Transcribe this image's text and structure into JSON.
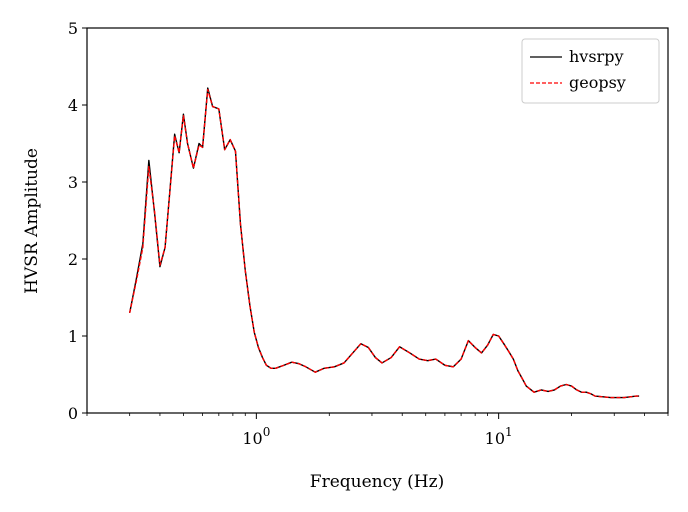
{
  "chart_data": {
    "type": "line",
    "xlabel": "Frequency (Hz)",
    "ylabel": "HVSR Amplitude",
    "xscale": "log",
    "xlim": [
      0.2,
      50
    ],
    "ylim": [
      0,
      5
    ],
    "yticks": [
      "0",
      "1",
      "2",
      "3",
      "4",
      "5"
    ],
    "xticks": [
      {
        "value": 1,
        "base": "10",
        "exp": "0"
      },
      {
        "value": 10,
        "base": "10",
        "exp": "1"
      }
    ],
    "grid": false,
    "legend_position": "top-right",
    "series": [
      {
        "name": "hvsrpy",
        "color": "#000000",
        "dash": "solid",
        "x": [
          0.3,
          0.32,
          0.34,
          0.36,
          0.38,
          0.4,
          0.42,
          0.44,
          0.46,
          0.48,
          0.5,
          0.52,
          0.55,
          0.58,
          0.6,
          0.63,
          0.66,
          0.7,
          0.74,
          0.78,
          0.82,
          0.86,
          0.9,
          0.94,
          0.98,
          1.02,
          1.06,
          1.1,
          1.15,
          1.2,
          1.3,
          1.4,
          1.5,
          1.6,
          1.75,
          1.9,
          2.1,
          2.3,
          2.5,
          2.7,
          2.9,
          3.1,
          3.3,
          3.6,
          3.9,
          4.3,
          4.7,
          5.1,
          5.5,
          6.0,
          6.5,
          7.0,
          7.5,
          8.0,
          8.5,
          9.0,
          9.5,
          10.0,
          10.5,
          11.0,
          11.5,
          12.0,
          12.5,
          13.0,
          14.0,
          15.0,
          16.0,
          17.0,
          18.0,
          19.0,
          20.0,
          21.0,
          22.0,
          23.0,
          24.0,
          25.0,
          27.0,
          29.0,
          31.0,
          33.0,
          35.0,
          37.0,
          38.0
        ],
        "values": [
          1.3,
          1.75,
          2.2,
          3.28,
          2.6,
          1.9,
          2.15,
          2.9,
          3.62,
          3.38,
          3.88,
          3.5,
          3.18,
          3.5,
          3.45,
          4.22,
          3.98,
          3.95,
          3.42,
          3.55,
          3.4,
          2.45,
          1.85,
          1.4,
          1.05,
          0.85,
          0.72,
          0.62,
          0.58,
          0.58,
          0.62,
          0.66,
          0.64,
          0.6,
          0.53,
          0.58,
          0.6,
          0.65,
          0.78,
          0.9,
          0.85,
          0.72,
          0.65,
          0.72,
          0.86,
          0.78,
          0.7,
          0.68,
          0.7,
          0.62,
          0.6,
          0.7,
          0.94,
          0.85,
          0.78,
          0.88,
          1.02,
          1.0,
          0.9,
          0.8,
          0.7,
          0.55,
          0.45,
          0.35,
          0.27,
          0.3,
          0.28,
          0.3,
          0.35,
          0.37,
          0.35,
          0.3,
          0.27,
          0.27,
          0.25,
          0.22,
          0.21,
          0.2,
          0.2,
          0.2,
          0.21,
          0.22,
          0.22
        ]
      },
      {
        "name": "geopsy",
        "color": "#ff0000",
        "dash": "dashed",
        "x": [
          0.3,
          0.32,
          0.34,
          0.36,
          0.38,
          0.4,
          0.42,
          0.44,
          0.46,
          0.48,
          0.5,
          0.52,
          0.55,
          0.58,
          0.6,
          0.63,
          0.66,
          0.7,
          0.74,
          0.78,
          0.82,
          0.86,
          0.9,
          0.94,
          0.98,
          1.02,
          1.06,
          1.1,
          1.15,
          1.2,
          1.3,
          1.4,
          1.5,
          1.6,
          1.75,
          1.9,
          2.1,
          2.3,
          2.5,
          2.7,
          2.9,
          3.1,
          3.3,
          3.6,
          3.9,
          4.3,
          4.7,
          5.1,
          5.5,
          6.0,
          6.5,
          7.0,
          7.5,
          8.0,
          8.5,
          9.0,
          9.5,
          10.0,
          10.5,
          11.0,
          11.5,
          12.0,
          12.5,
          13.0,
          14.0,
          15.0,
          16.0,
          17.0,
          18.0,
          19.0,
          20.0,
          21.0,
          22.0,
          23.0,
          24.0,
          25.0,
          27.0,
          29.0,
          31.0,
          33.0,
          35.0,
          37.0,
          38.0
        ],
        "values": [
          1.3,
          1.72,
          2.15,
          3.2,
          2.62,
          1.92,
          2.15,
          2.88,
          3.6,
          3.38,
          3.86,
          3.5,
          3.18,
          3.48,
          3.45,
          4.2,
          3.98,
          3.95,
          3.42,
          3.55,
          3.4,
          2.45,
          1.85,
          1.4,
          1.05,
          0.85,
          0.72,
          0.62,
          0.58,
          0.58,
          0.62,
          0.66,
          0.64,
          0.6,
          0.53,
          0.58,
          0.6,
          0.65,
          0.78,
          0.9,
          0.85,
          0.72,
          0.65,
          0.72,
          0.86,
          0.78,
          0.7,
          0.68,
          0.7,
          0.62,
          0.6,
          0.7,
          0.94,
          0.85,
          0.78,
          0.88,
          1.02,
          1.0,
          0.9,
          0.8,
          0.7,
          0.55,
          0.45,
          0.35,
          0.27,
          0.3,
          0.28,
          0.3,
          0.35,
          0.37,
          0.35,
          0.3,
          0.27,
          0.27,
          0.25,
          0.22,
          0.21,
          0.2,
          0.2,
          0.2,
          0.21,
          0.22,
          0.22
        ]
      }
    ]
  }
}
